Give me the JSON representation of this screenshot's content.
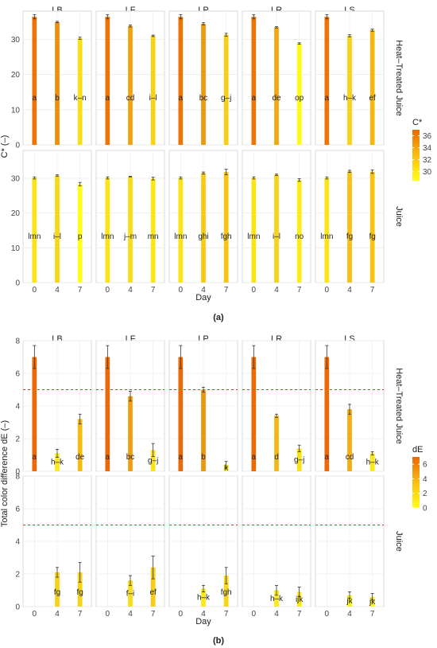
{
  "colors": {
    "panel_bg": "#ffffff",
    "panel_border": "#d9d9d9",
    "grid": "#ececec",
    "text": "#222222",
    "low": "#ffff1a",
    "high": "#e86a08",
    "ref_line": "#e0301e"
  },
  "figure_labels": [
    "(a)",
    "(b)"
  ],
  "chart_data": [
    {
      "type": "bar",
      "facets": {
        "columns": [
          "LB",
          "LF",
          "LP",
          "LR",
          "LS"
        ],
        "rows": [
          "Heat–Treated Juice",
          "Juice"
        ]
      },
      "categories": [
        "0",
        "4",
        "7"
      ],
      "xlabel": "Day",
      "ylabel": "C* (–)",
      "ylim": [
        0,
        38
      ],
      "yticks": [
        0,
        10,
        20,
        30
      ],
      "grid": true,
      "legend": {
        "title": "C*",
        "position": "right",
        "min": 28.5,
        "max": 37,
        "ticks": [
          36,
          34,
          32,
          30
        ]
      },
      "panels": [
        {
          "row": 0,
          "col": 0,
          "values": [
            36.4,
            34.9,
            30.3
          ],
          "errors": [
            0.6,
            0.2,
            0.3
          ],
          "letters": [
            "a",
            "b",
            "k–n"
          ]
        },
        {
          "row": 0,
          "col": 1,
          "values": [
            36.4,
            33.8,
            31.0
          ],
          "errors": [
            0.6,
            0.3,
            0.2
          ],
          "letters": [
            "a",
            "cd",
            "i–l"
          ]
        },
        {
          "row": 0,
          "col": 2,
          "values": [
            36.4,
            34.4,
            31.3
          ],
          "errors": [
            0.6,
            0.3,
            0.4
          ],
          "letters": [
            "a",
            "bc",
            "g–j"
          ]
        },
        {
          "row": 0,
          "col": 3,
          "values": [
            36.4,
            33.4,
            28.8
          ],
          "errors": [
            0.6,
            0.2,
            0.2
          ],
          "letters": [
            "a",
            "de",
            "op"
          ]
        },
        {
          "row": 0,
          "col": 4,
          "values": [
            36.4,
            31.0,
            32.6
          ],
          "errors": [
            0.6,
            0.3,
            0.3
          ],
          "letters": [
            "a",
            "h–k",
            "ef"
          ]
        },
        {
          "row": 1,
          "col": 0,
          "values": [
            30.1,
            30.8,
            28.3
          ],
          "errors": [
            0.3,
            0.2,
            0.5
          ],
          "letters": [
            "lmn",
            "i–l",
            "p"
          ]
        },
        {
          "row": 1,
          "col": 1,
          "values": [
            30.1,
            30.5,
            29.9
          ],
          "errors": [
            0.3,
            0.1,
            0.4
          ],
          "letters": [
            "lmn",
            "j–m",
            "mn"
          ]
        },
        {
          "row": 1,
          "col": 2,
          "values": [
            30.1,
            31.5,
            31.8
          ],
          "errors": [
            0.3,
            0.3,
            0.8
          ],
          "letters": [
            "lmn",
            "ghi",
            "fgh"
          ]
        },
        {
          "row": 1,
          "col": 3,
          "values": [
            30.1,
            31.0,
            29.5
          ],
          "errors": [
            0.3,
            0.2,
            0.4
          ],
          "letters": [
            "lmn",
            "i–l",
            "no"
          ]
        },
        {
          "row": 1,
          "col": 4,
          "values": [
            30.1,
            32.0,
            31.9
          ],
          "errors": [
            0.3,
            0.3,
            0.5
          ],
          "letters": [
            "lmn",
            "fg",
            "fg"
          ]
        }
      ]
    },
    {
      "type": "bar",
      "facets": {
        "columns": [
          "LB",
          "LF",
          "LP",
          "LR",
          "LS"
        ],
        "rows": [
          "Heat–Treated Juice",
          "Juice"
        ]
      },
      "categories": [
        "0",
        "4",
        "7"
      ],
      "xlabel": "Day",
      "ylabel": "Total color difference dE (–)",
      "ylim": [
        0,
        8
      ],
      "yticks": [
        0,
        2,
        4,
        6,
        8
      ],
      "grid": true,
      "reference_line": {
        "y": 5,
        "style": "dashed"
      },
      "legend": {
        "title": "dE",
        "position": "right",
        "min": 0,
        "max": 7,
        "ticks": [
          6,
          4,
          2,
          0
        ]
      },
      "panels": [
        {
          "row": 0,
          "col": 0,
          "values": [
            7.0,
            1.1,
            3.2
          ],
          "errors": [
            0.7,
            0.25,
            0.3
          ],
          "letters": [
            "a",
            "h–k",
            "de"
          ]
        },
        {
          "row": 0,
          "col": 1,
          "values": [
            7.0,
            4.6,
            1.3
          ],
          "errors": [
            0.7,
            0.3,
            0.4
          ],
          "letters": [
            "a",
            "bc",
            "g–j"
          ]
        },
        {
          "row": 0,
          "col": 2,
          "values": [
            7.0,
            5.0,
            0.4
          ],
          "errors": [
            0.7,
            0.15,
            0.2
          ],
          "letters": [
            "a",
            "b",
            "k"
          ]
        },
        {
          "row": 0,
          "col": 3,
          "values": [
            7.0,
            3.4,
            1.4
          ],
          "errors": [
            0.7,
            0.1,
            0.2
          ],
          "letters": [
            "a",
            "d",
            "g–j"
          ]
        },
        {
          "row": 0,
          "col": 4,
          "values": [
            7.0,
            3.8,
            1.1
          ],
          "errors": [
            0.7,
            0.3,
            0.1
          ],
          "letters": [
            "a",
            "cd",
            "h–k"
          ]
        },
        {
          "row": 1,
          "col": 0,
          "values": [
            0,
            2.1,
            2.1
          ],
          "errors": [
            0,
            0.3,
            0.6
          ],
          "letters": [
            "",
            "fg",
            "fg"
          ]
        },
        {
          "row": 1,
          "col": 1,
          "values": [
            0,
            1.6,
            2.4
          ],
          "errors": [
            0,
            0.3,
            0.7
          ],
          "letters": [
            "",
            "f–i",
            "ef"
          ]
        },
        {
          "row": 1,
          "col": 2,
          "values": [
            0,
            1.1,
            1.9
          ],
          "errors": [
            0,
            0.2,
            0.5
          ],
          "letters": [
            "",
            "h–k",
            "fgh"
          ]
        },
        {
          "row": 1,
          "col": 3,
          "values": [
            0,
            1.0,
            0.9
          ],
          "errors": [
            0,
            0.3,
            0.3
          ],
          "letters": [
            "",
            "h–k",
            "ijk"
          ]
        },
        {
          "row": 1,
          "col": 4,
          "values": [
            0,
            0.7,
            0.6
          ],
          "errors": [
            0,
            0.2,
            0.2
          ],
          "letters": [
            "",
            "jk",
            "jk"
          ]
        }
      ]
    }
  ]
}
